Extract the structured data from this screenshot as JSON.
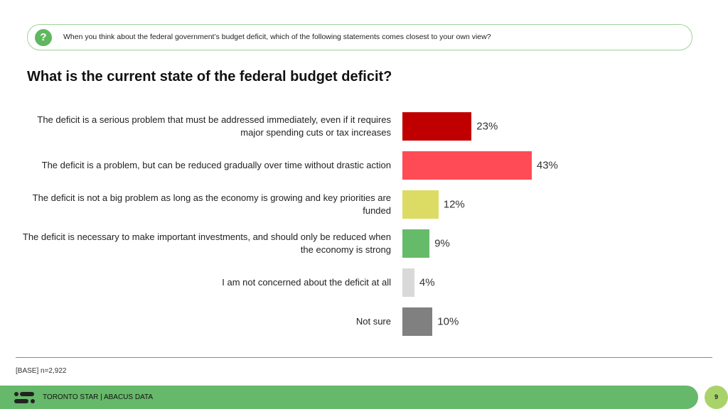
{
  "question": "When you think about the federal government’s budget deficit, which of the following statements comes closest to your own view?",
  "question_icon": "question-bubble-icon",
  "chart_data": {
    "type": "bar",
    "orientation": "horizontal",
    "title": "What is the current state of the federal budget deficit?",
    "categories": [
      "The deficit is a serious problem that must be addressed immediately, even if it requires major spending cuts or tax increases",
      "The deficit is a problem, but can be reduced gradually over time without drastic action",
      "The deficit is not a big problem as long as the economy is growing and key priorities are funded",
      "The deficit is necessary to make important investments, and should only be reduced when the economy is strong",
      "I am not concerned about the deficit at all",
      "Not sure"
    ],
    "values": [
      23,
      43,
      12,
      9,
      4,
      10
    ],
    "labels": [
      "23%",
      "43%",
      "12%",
      "9%",
      "4%",
      "10%"
    ],
    "colors": [
      "#C00000",
      "#FF4B55",
      "#DCDC64",
      "#66BB6A",
      "#D9D9D9",
      "#808080"
    ],
    "unit": "%"
  },
  "base": "[BASE] n=2,922",
  "footer": {
    "text": "TORONTO STAR  |  ABACUS DATA",
    "page": "9"
  }
}
